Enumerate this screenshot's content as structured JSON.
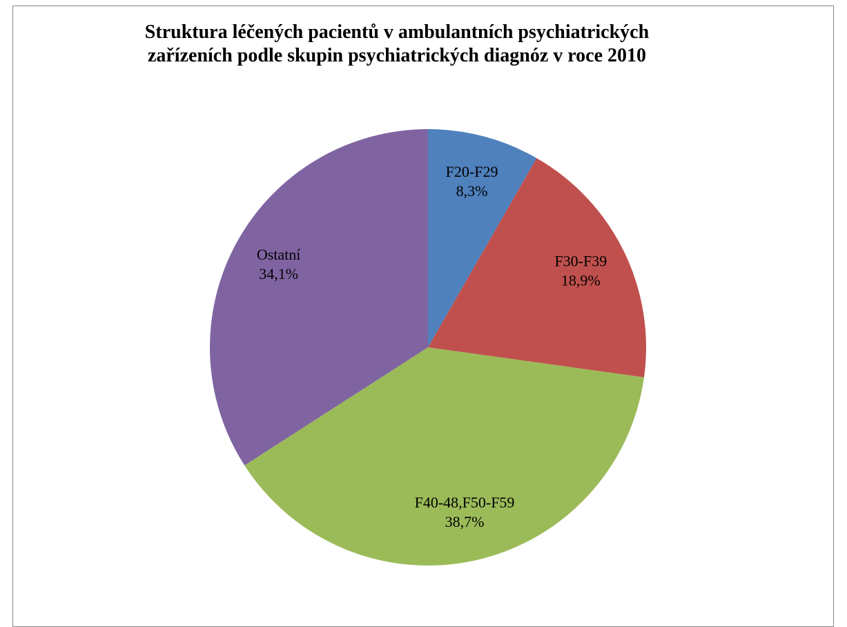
{
  "chart_data": {
    "type": "pie",
    "title": "Struktura léčených pacientů v ambulantních psychiatrických\nzařízeních podle skupin psychiatrických diagnóz v roce 2010",
    "categories": [
      "F20-F29",
      "F30-F39",
      "F40-48,F50-F59",
      "Ostatní"
    ],
    "values": [
      8.3,
      18.9,
      38.7,
      34.1
    ],
    "value_labels": [
      "8,3%",
      "18,9%",
      "38,7%",
      "34,1%"
    ],
    "colors": [
      "#4f81bd",
      "#c0504d",
      "#9bbb59",
      "#8064a2"
    ]
  }
}
